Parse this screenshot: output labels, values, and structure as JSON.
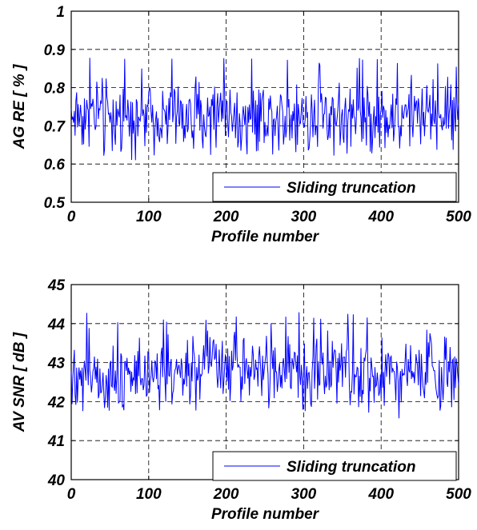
{
  "chart_data": [
    {
      "type": "line",
      "xlabel": "Profile number",
      "ylabel": "AG RE [ % ]",
      "xlim": [
        0,
        500
      ],
      "ylim": [
        0.5,
        1
      ],
      "xticks": [
        0,
        100,
        200,
        300,
        400,
        500
      ],
      "yticks": [
        0.5,
        0.6,
        0.7,
        0.8,
        0.9,
        1
      ],
      "xtick_labels": [
        "0",
        "100",
        "200",
        "300",
        "400",
        "500"
      ],
      "ytick_labels": [
        "0.5",
        "0.6",
        "0.7",
        "0.8",
        "0.9",
        "1"
      ],
      "grid": true,
      "legend_position": "bottom-right",
      "series": [
        {
          "name": "Sliding truncation",
          "color": "#0000ff",
          "n": 500,
          "mean": 0.73,
          "spread": 0.055,
          "min": 0.61,
          "max": 0.88
        }
      ]
    },
    {
      "type": "line",
      "xlabel": "Profile number",
      "ylabel": "AV SNR [ dB ]",
      "xlim": [
        0,
        500
      ],
      "ylim": [
        40,
        45
      ],
      "xticks": [
        0,
        100,
        200,
        300,
        400,
        500
      ],
      "yticks": [
        40,
        41,
        42,
        43,
        44,
        45
      ],
      "xtick_labels": [
        "0",
        "100",
        "200",
        "300",
        "400",
        "500"
      ],
      "ytick_labels": [
        "40",
        "41",
        "42",
        "43",
        "44",
        "45"
      ],
      "grid": true,
      "legend_position": "bottom-right",
      "series": [
        {
          "name": "Sliding truncation",
          "color": "#0000ff",
          "n": 500,
          "mean": 42.8,
          "spread": 0.55,
          "min": 41.2,
          "max": 44.3
        }
      ]
    }
  ]
}
